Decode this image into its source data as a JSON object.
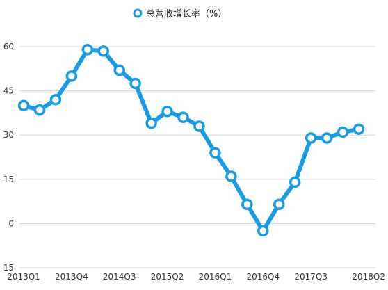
{
  "chart_data": {
    "type": "line",
    "title": "",
    "xlabel": "",
    "ylabel": "",
    "ylim": [
      -15,
      60
    ],
    "yticks": [
      -15,
      0,
      15,
      30,
      45,
      60
    ],
    "grid": true,
    "legend_position": "top-center",
    "x": [
      "2013Q1",
      "2013Q2",
      "2013Q3",
      "2013Q4",
      "2014Q1",
      "2014Q2",
      "2014Q3",
      "2014Q4",
      "2015Q1",
      "2015Q2",
      "2015Q3",
      "2015Q4",
      "2016Q1",
      "2016Q2",
      "2016Q3",
      "2016Q4",
      "2017Q1",
      "2017Q2",
      "2017Q3",
      "2017Q4",
      "2018Q1",
      "2018Q2"
    ],
    "xtick_labels": [
      "2013Q1",
      "2013Q4",
      "2014Q3",
      "2015Q2",
      "2016Q1",
      "2016Q4",
      "2017Q3",
      "2018Q2"
    ],
    "series": [
      {
        "name": "总营收增长率（%）",
        "color": "#1a9be6",
        "values": [
          40,
          38.5,
          42,
          50,
          59,
          58.5,
          52,
          47.5,
          34,
          38,
          36,
          33,
          24,
          16,
          6.5,
          -2.5,
          6.5,
          14,
          29,
          29,
          31,
          32
        ]
      }
    ]
  }
}
